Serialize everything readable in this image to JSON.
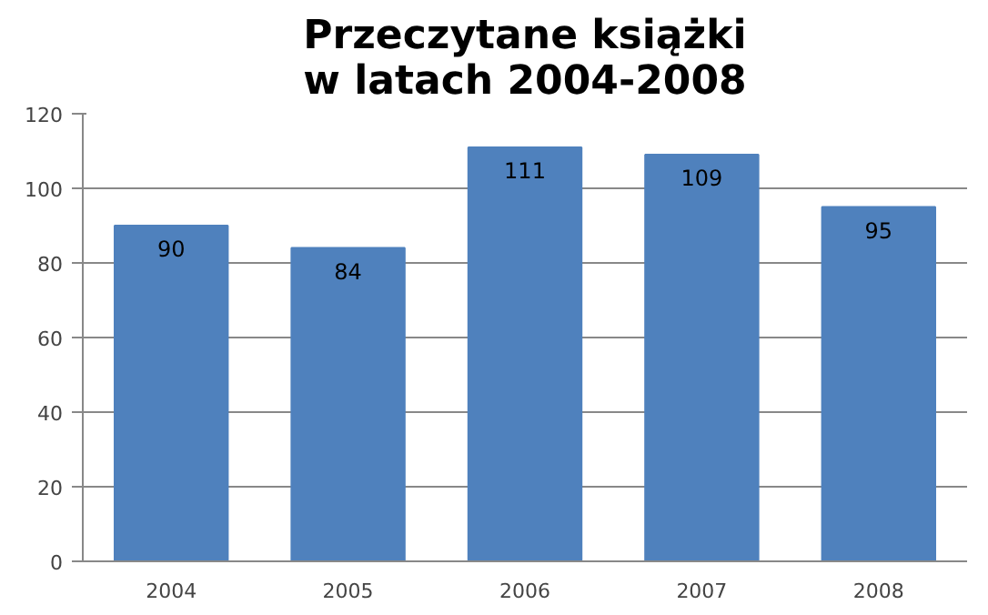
{
  "chart_data": {
    "type": "bar",
    "title": "Przeczytane książki\nw latach 2004-2008",
    "categories": [
      "2004",
      "2005",
      "2006",
      "2007",
      "2008"
    ],
    "values": [
      90,
      84,
      111,
      109,
      95
    ],
    "color": "#4f81bd",
    "ylim": [
      0,
      120
    ],
    "yticks": [
      0,
      20,
      40,
      60,
      80,
      100,
      120
    ],
    "grid": "y",
    "data_labels": true
  }
}
